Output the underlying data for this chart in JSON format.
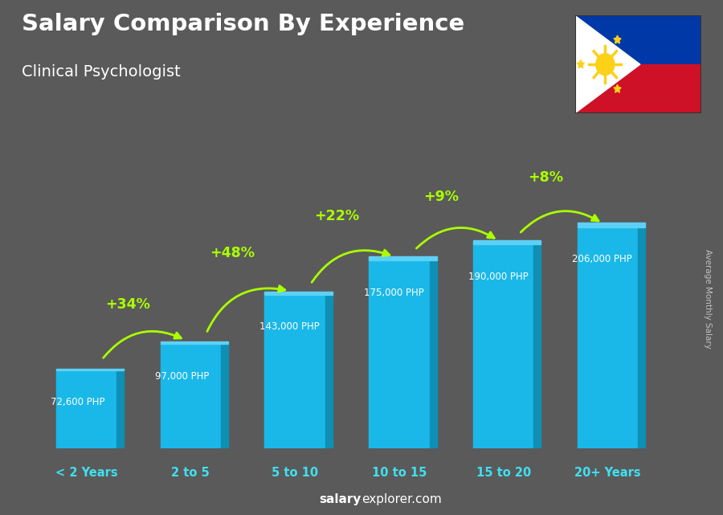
{
  "title": "Salary Comparison By Experience",
  "subtitle": "Clinical Psychologist",
  "right_label": "Average Monthly Salary",
  "watermark_bold": "salary",
  "watermark_regular": "explorer.com",
  "categories": [
    "< 2 Years",
    "2 to 5",
    "5 to 10",
    "10 to 15",
    "15 to 20",
    "20+ Years"
  ],
  "values": [
    72600,
    97000,
    143000,
    175000,
    190000,
    206000
  ],
  "salary_labels": [
    "72,600 PHP",
    "97,000 PHP",
    "143,000 PHP",
    "175,000 PHP",
    "190,000 PHP",
    "206,000 PHP"
  ],
  "pct_labels": [
    "+34%",
    "+48%",
    "+22%",
    "+9%",
    "+8%"
  ],
  "bar_color_main": "#1ab8e8",
  "bar_color_dark": "#0e8fb5",
  "bar_color_light": "#5dd0f5",
  "pct_color": "#aaff00",
  "title_color": "#ffffff",
  "subtitle_color": "#ffffff",
  "bg_color": "#5a5a5a",
  "xlabel_color": "#40e0f0",
  "salary_color": "#ffffff",
  "right_label_color": "#cccccc",
  "ylim_max": 250000,
  "bar_width": 0.58
}
